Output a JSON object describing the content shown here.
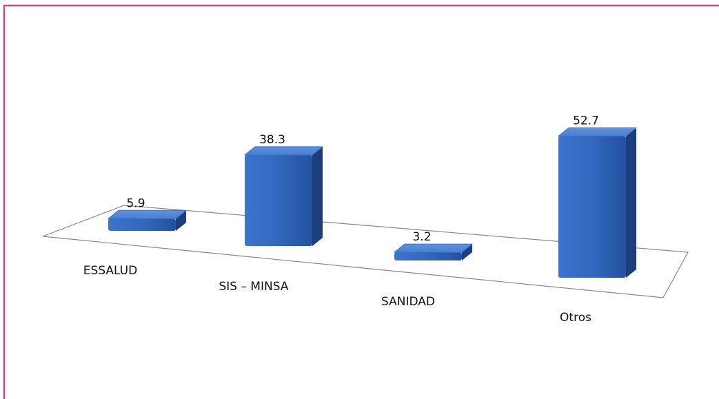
{
  "chart_data": {
    "type": "bar3d",
    "categories": [
      "ESSALUD",
      "SIS – MINSA",
      "SANIDAD",
      "Otros"
    ],
    "values": [
      5.9,
      38.3,
      3.2,
      52.7
    ],
    "color": "#2f63b8"
  }
}
